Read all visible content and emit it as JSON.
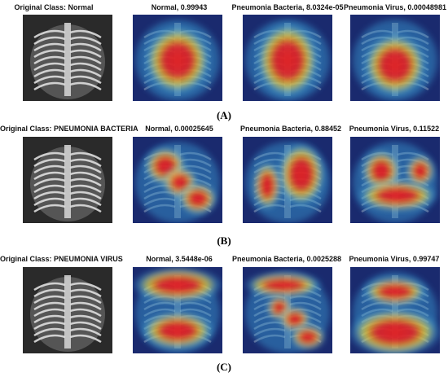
{
  "rows": [
    {
      "label": "(A)",
      "panels": [
        {
          "caption": "Original Class: Normal",
          "kind": "xray"
        },
        {
          "caption": "Normal, 0.99943",
          "kind": "heat",
          "hot": "center"
        },
        {
          "caption": "Pneumonia Bacteria, 8.0324e-05",
          "kind": "heat",
          "hot": "center-tall"
        },
        {
          "caption": "Pneumonia Virus, 0.00048981",
          "kind": "heat",
          "hot": "center-low"
        }
      ]
    },
    {
      "label": "(B)",
      "panels": [
        {
          "caption": "Original Class: PNEUMONIA BACTERIA",
          "kind": "xray"
        },
        {
          "caption": "Normal, 0.00025645",
          "kind": "heat",
          "hot": "diagonal"
        },
        {
          "caption": "Pneumonia Bacteria, 0.88452",
          "kind": "heat",
          "hot": "right-lung"
        },
        {
          "caption": "Pneumonia Virus, 0.11522",
          "kind": "heat",
          "hot": "lower-band"
        }
      ]
    },
    {
      "label": "(C)",
      "panels": [
        {
          "caption": "Original Class: PNEUMONIA VIRUS",
          "kind": "xray"
        },
        {
          "caption": "Normal, 3.5448e-06",
          "kind": "heat",
          "hot": "top-band"
        },
        {
          "caption": "Pneumonia Bacteria, 0.0025288",
          "kind": "heat",
          "hot": "s-shape"
        },
        {
          "caption": "Pneumonia Virus, 0.99747",
          "kind": "heat",
          "hot": "bottom-band"
        }
      ]
    }
  ],
  "colors": {
    "hot": "#e8201c",
    "warm": "#f2e21a",
    "cool": "#3aa0d8",
    "cold": "#1a2a6e"
  }
}
